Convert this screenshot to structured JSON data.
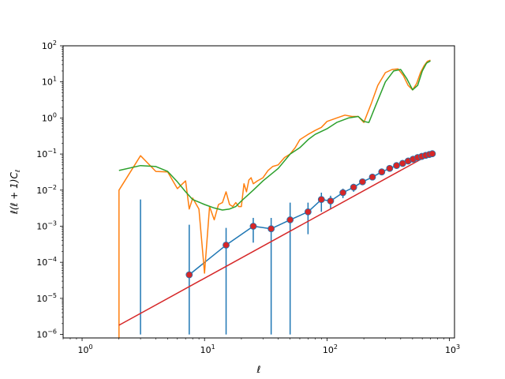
{
  "chart_data": {
    "type": "line",
    "xscale": "log",
    "yscale": "log",
    "xlim": [
      0.7,
      1100
    ],
    "ylim": [
      8e-07,
      100
    ],
    "xlabel": "ℓ",
    "ylabel": "ℓ(ℓ + 1)C",
    "ylabel_subscript": "ℓ",
    "grid": false,
    "xticks": [
      {
        "value": 1,
        "base": "10",
        "exp": "0"
      },
      {
        "value": 10,
        "base": "10",
        "exp": "1"
      },
      {
        "value": 100,
        "base": "10",
        "exp": "2"
      },
      {
        "value": 1000,
        "base": "10",
        "exp": "3"
      }
    ],
    "yticks": [
      {
        "value": 1e-06,
        "base": "10",
        "exp": "−6"
      },
      {
        "value": 1e-05,
        "base": "10",
        "exp": "−5"
      },
      {
        "value": 0.0001,
        "base": "10",
        "exp": "−4"
      },
      {
        "value": 0.001,
        "base": "10",
        "exp": "−3"
      },
      {
        "value": 0.01,
        "base": "10",
        "exp": "−2"
      },
      {
        "value": 0.1,
        "base": "10",
        "exp": "−1"
      },
      {
        "value": 1,
        "base": "10",
        "exp": "0"
      },
      {
        "value": 10,
        "base": "10",
        "exp": "1"
      },
      {
        "value": 100,
        "base": "10",
        "exp": "2"
      }
    ],
    "colors": {
      "blue": "#1f77b4",
      "orange": "#ff7f0e",
      "green": "#2ca02c",
      "red": "#d62728"
    },
    "series": [
      {
        "id": "orange",
        "kind": "line",
        "color": "#ff7f0e",
        "x": [
          2,
          2,
          3,
          4,
          5,
          6,
          7,
          7.5,
          8,
          9,
          10,
          11,
          12,
          13,
          14,
          15,
          16,
          17,
          18,
          19,
          20,
          21,
          22,
          23,
          24,
          25,
          27,
          30,
          33,
          36,
          40,
          45,
          50,
          55,
          60,
          70,
          80,
          90,
          100,
          120,
          140,
          160,
          180,
          200,
          230,
          260,
          300,
          340,
          380,
          420,
          460,
          500,
          540,
          580,
          620,
          660,
          700
        ],
        "y": [
          8e-07,
          0.01,
          0.09,
          0.033,
          0.032,
          0.011,
          0.018,
          0.003,
          0.006,
          0.003,
          5e-05,
          0.0035,
          0.0015,
          0.004,
          0.0045,
          0.009,
          0.004,
          0.0035,
          0.0045,
          0.0035,
          0.0035,
          0.015,
          0.009,
          0.019,
          0.022,
          0.015,
          0.018,
          0.022,
          0.035,
          0.045,
          0.05,
          0.08,
          0.1,
          0.15,
          0.25,
          0.35,
          0.45,
          0.55,
          0.8,
          1.0,
          1.2,
          1.1,
          1.1,
          0.75,
          2.5,
          8.0,
          18.0,
          22.0,
          23.0,
          15.0,
          8.0,
          6.0,
          9.0,
          18.0,
          28.0,
          37.0,
          40.0
        ]
      },
      {
        "id": "green",
        "kind": "line",
        "color": "#2ca02c",
        "x": [
          2,
          3,
          4,
          5,
          6,
          7,
          8,
          10,
          12,
          14,
          16,
          18,
          20,
          25,
          30,
          40,
          50,
          60,
          70,
          80,
          100,
          120,
          150,
          180,
          200,
          220,
          250,
          300,
          350,
          400,
          450,
          500,
          550,
          600,
          650,
          700
        ],
        "y": [
          0.035,
          0.048,
          0.045,
          0.033,
          0.017,
          0.009,
          0.0055,
          0.004,
          0.0032,
          0.0028,
          0.003,
          0.0035,
          0.005,
          0.01,
          0.018,
          0.04,
          0.1,
          0.15,
          0.25,
          0.35,
          0.5,
          0.75,
          1.0,
          1.1,
          0.8,
          0.75,
          2.2,
          10.0,
          20.0,
          22.0,
          12.0,
          6.0,
          8.0,
          20.0,
          33.0,
          38.0
        ]
      },
      {
        "id": "red",
        "kind": "line",
        "color": "#d62728",
        "x": [
          2,
          700
        ],
        "y": [
          1.8e-06,
          0.1
        ]
      },
      {
        "id": "blue",
        "kind": "points_with_errorbars",
        "color": "#1f77b4",
        "marker_color": "#d62728",
        "x": [
          7.5,
          15,
          25,
          35,
          50,
          70,
          90,
          107,
          135,
          165,
          195,
          235,
          280,
          325,
          370,
          415,
          460,
          505,
          550,
          595,
          640,
          685,
          725
        ],
        "y": [
          4.5e-05,
          0.0003,
          0.001,
          0.00085,
          0.0015,
          0.0025,
          0.0055,
          0.005,
          0.0085,
          0.012,
          0.017,
          0.023,
          0.032,
          0.04,
          0.048,
          0.055,
          0.064,
          0.072,
          0.08,
          0.086,
          0.092,
          0.097,
          0.102
        ],
        "err_low": [
          1e-06,
          1e-06,
          0.00035,
          1e-06,
          1e-06,
          0.0006,
          0.0025,
          0.003,
          0.006,
          0.009,
          0.014,
          0.02,
          0.029,
          0.037,
          0.045,
          0.052,
          0.061,
          0.069,
          0.077,
          0.083,
          0.089,
          0.094,
          0.099
        ],
        "err_high": [
          0.0011,
          0.0009,
          0.0017,
          0.0017,
          0.0045,
          0.0045,
          0.0085,
          0.007,
          0.011,
          0.015,
          0.02,
          0.026,
          0.035,
          0.043,
          0.051,
          0.058,
          0.067,
          0.075,
          0.083,
          0.089,
          0.095,
          0.1,
          0.105
        ]
      },
      {
        "id": "blue-extra-errorbar",
        "kind": "errorbar_only",
        "color": "#1f77b4",
        "x": [
          3
        ],
        "err_low": [
          1e-06
        ],
        "err_high": [
          0.0055
        ]
      }
    ]
  }
}
